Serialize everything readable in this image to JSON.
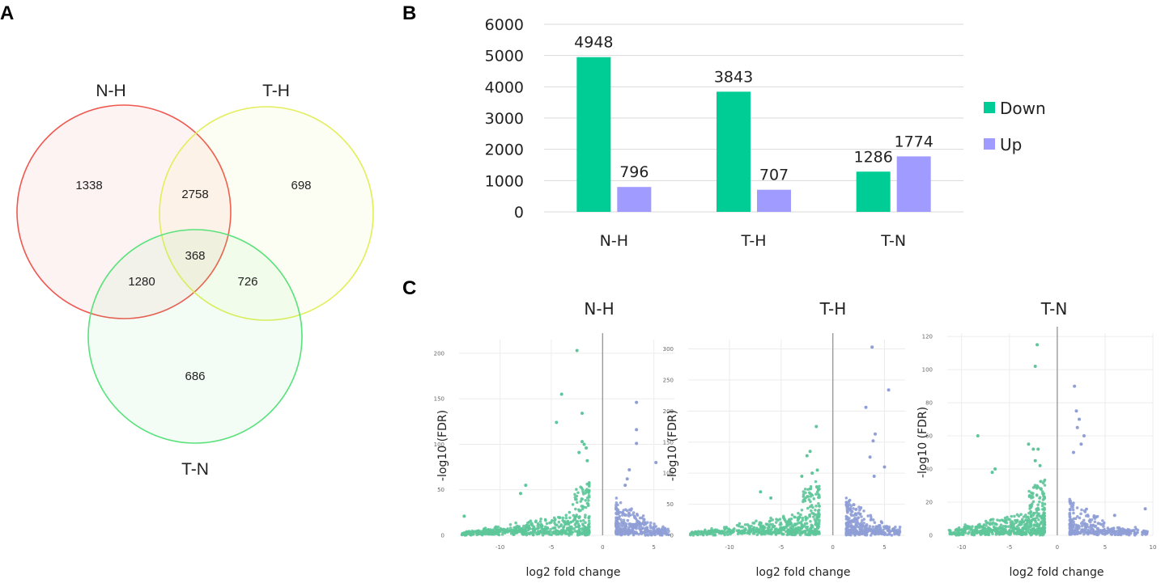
{
  "panels": {
    "a": "A",
    "b": "B",
    "c": "C"
  },
  "colors": {
    "nh_circle": "#f0574f",
    "th_circle": "#e2ee5a",
    "tn_circle": "#58e27a",
    "down": "#00cc96",
    "up": "#a09cff",
    "volcano_down": "#5ec69a",
    "volcano_up": "#8f9ed6"
  },
  "chart_data": [
    {
      "type": "venn",
      "sets": [
        "N-H",
        "T-H",
        "T-N"
      ],
      "regions": [
        {
          "sets": [
            "N-H"
          ],
          "value": 1338
        },
        {
          "sets": [
            "T-H"
          ],
          "value": 698
        },
        {
          "sets": [
            "T-N"
          ],
          "value": 686
        },
        {
          "sets": [
            "N-H",
            "T-H"
          ],
          "value": 2758
        },
        {
          "sets": [
            "N-H",
            "T-N"
          ],
          "value": 1280
        },
        {
          "sets": [
            "T-H",
            "T-N"
          ],
          "value": 726
        },
        {
          "sets": [
            "N-H",
            "T-H",
            "T-N"
          ],
          "value": 368
        }
      ]
    },
    {
      "type": "bar",
      "categories": [
        "N-H",
        "T-H",
        "T-N"
      ],
      "series": [
        {
          "name": "Down",
          "values": [
            4948,
            3843,
            1286
          ]
        },
        {
          "name": "Up",
          "values": [
            796,
            707,
            1774
          ]
        }
      ],
      "yticks": [
        "0",
        "1000",
        "2000",
        "3000",
        "4000",
        "5000",
        "6000"
      ],
      "ylim": [
        0,
        6000
      ],
      "legend": "right",
      "grid": true
    },
    {
      "type": "scatter",
      "subtype": "volcano",
      "panels": [
        {
          "title": "N-H",
          "xlabel": "log2 fold change",
          "ylabel": "-log10 (FDR)",
          "xlim": [
            -14,
            7
          ],
          "ylim": [
            0,
            215
          ],
          "xticks": [
            "-10",
            "-5",
            "0",
            "5"
          ],
          "yticks": [
            "0",
            "50",
            "100",
            "150",
            "200"
          ],
          "highlights": [
            [
              -2.5,
              203
            ],
            [
              -4.0,
              155
            ],
            [
              -4.5,
              124
            ],
            [
              -2.0,
              134
            ],
            [
              -2.0,
              103
            ],
            [
              -1.8,
              100
            ],
            [
              -1.6,
              96
            ],
            [
              -2.3,
              91
            ],
            [
              -1.5,
              82
            ],
            [
              -7.5,
              55
            ],
            [
              -8.0,
              46
            ],
            [
              -13.5,
              21
            ],
            [
              3.3,
              146
            ],
            [
              3.3,
              116
            ],
            [
              3.3,
              101
            ],
            [
              5.2,
              80
            ],
            [
              2.6,
              72
            ],
            [
              2.4,
              62
            ],
            [
              2.2,
              55
            ]
          ]
        },
        {
          "title": "T-H",
          "xlabel": "log2 fold change",
          "ylabel": "-log10 (FDR)",
          "xlim": [
            -14,
            7
          ],
          "ylim": [
            0,
            315
          ],
          "xticks": [
            "-10",
            "-5",
            "0",
            "5"
          ],
          "yticks": [
            "0",
            "50",
            "100",
            "150",
            "200",
            "250",
            "300"
          ],
          "highlights": [
            [
              -1.6,
              175
            ],
            [
              -2.2,
              135
            ],
            [
              -2.5,
              128
            ],
            [
              -1.5,
              105
            ],
            [
              -3.0,
              95
            ],
            [
              -2.0,
              100
            ],
            [
              -7.0,
              70
            ],
            [
              -6.0,
              60
            ],
            [
              3.8,
              303
            ],
            [
              5.4,
              234
            ],
            [
              3.2,
              206
            ],
            [
              4.1,
              163
            ],
            [
              3.9,
              152
            ],
            [
              3.6,
              126
            ],
            [
              5.0,
              110
            ],
            [
              4.0,
              95
            ]
          ]
        },
        {
          "title": "T-N",
          "xlabel": "log2 fold change",
          "ylabel": "-log10 (FDR)",
          "xlim": [
            -11.5,
            10
          ],
          "ylim": [
            0,
            122
          ],
          "xticks": [
            "-10",
            "-5",
            "0",
            "5",
            "10"
          ],
          "yticks": [
            "0",
            "20",
            "40",
            "60",
            "80",
            "100",
            "120"
          ],
          "highlights": [
            [
              -2.1,
              115
            ],
            [
              -2.3,
              102
            ],
            [
              -8.3,
              60
            ],
            [
              -3.0,
              55
            ],
            [
              -2.5,
              52
            ],
            [
              -2.0,
              52
            ],
            [
              -6.5,
              40
            ],
            [
              -6.8,
              38
            ],
            [
              -2.3,
              45
            ],
            [
              -1.8,
              42
            ],
            [
              1.8,
              90
            ],
            [
              2.0,
              75
            ],
            [
              2.3,
              70
            ],
            [
              2.1,
              65
            ],
            [
              2.8,
              60
            ],
            [
              2.5,
              55
            ],
            [
              1.7,
              50
            ],
            [
              9.2,
              16
            ],
            [
              6.0,
              12
            ]
          ]
        }
      ]
    }
  ]
}
